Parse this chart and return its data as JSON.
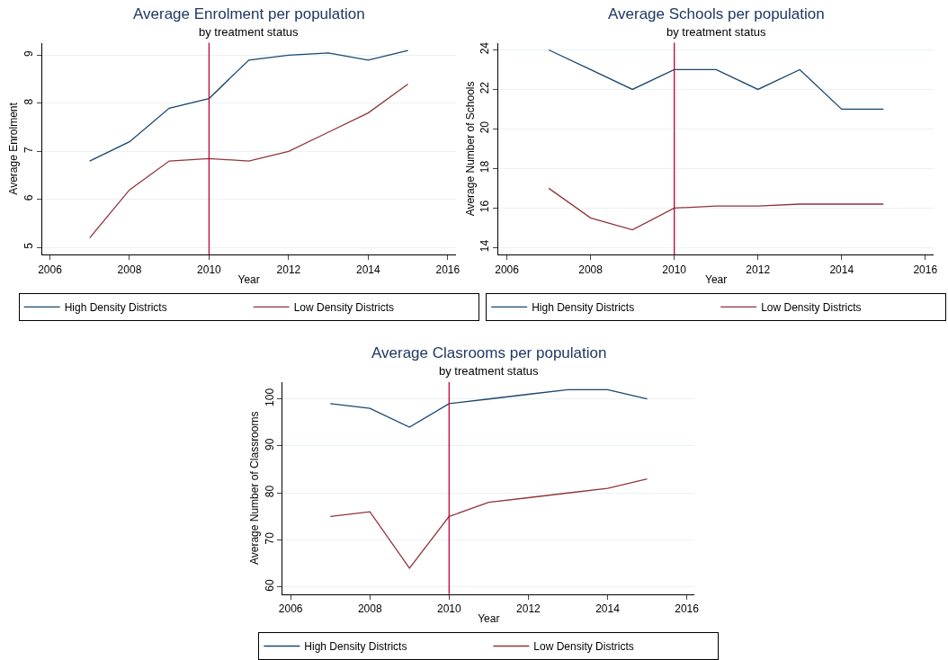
{
  "chart_data": [
    {
      "type": "line",
      "title": "Average Enrolment per population",
      "subtitle": "by treatment status",
      "xlabel": "Year",
      "ylabel": "Average Enrolment",
      "x": [
        2007,
        2008,
        2009,
        2010,
        2011,
        2012,
        2013,
        2014,
        2015
      ],
      "series": [
        {
          "name": "High Density Districts",
          "color": "#1a476f",
          "values": [
            6.8,
            7.2,
            7.9,
            8.1,
            8.9,
            9.0,
            9.05,
            8.9,
            9.1
          ]
        },
        {
          "name": "Low Density Districts",
          "color": "#90353b",
          "values": [
            5.2,
            6.2,
            6.8,
            6.85,
            6.8,
            7.0,
            7.4,
            7.8,
            8.4
          ]
        }
      ],
      "xlim": [
        2005.8,
        2016.2
      ],
      "xticks": [
        2006,
        2008,
        2010,
        2012,
        2014,
        2016
      ],
      "ylim": [
        4.85,
        9.26
      ],
      "yticks": [
        5,
        6,
        7,
        8,
        9
      ],
      "grid": "y",
      "legend": "bottom",
      "marker": "none",
      "line_style": "solid",
      "ref_lines": [
        {
          "axis": "x",
          "value": 2010,
          "color": "#c10534"
        }
      ]
    },
    {
      "type": "line",
      "title": "Average Schools per population",
      "subtitle": "by treatment status",
      "xlabel": "Year",
      "ylabel": "Average Number of Schools",
      "x": [
        2007,
        2008,
        2009,
        2010,
        2011,
        2012,
        2013,
        2014,
        2015
      ],
      "series": [
        {
          "name": "High Density Districts",
          "color": "#1a476f",
          "values": [
            24,
            23,
            22,
            23,
            23,
            22,
            23,
            21,
            21
          ]
        },
        {
          "name": "Low Density Districts",
          "color": "#90353b",
          "values": [
            17,
            15.5,
            14.9,
            16,
            16.1,
            16.1,
            16.2,
            16.2,
            16.2
          ]
        }
      ],
      "xlim": [
        2005.8,
        2016.2
      ],
      "xticks": [
        2006,
        2008,
        2010,
        2012,
        2014,
        2016
      ],
      "ylim": [
        13.64,
        24.36
      ],
      "yticks": [
        14,
        16,
        18,
        20,
        22,
        24
      ],
      "grid": "y",
      "legend": "bottom",
      "marker": "none",
      "line_style": "solid",
      "ref_lines": [
        {
          "axis": "x",
          "value": 2010,
          "color": "#c10534"
        }
      ]
    },
    {
      "type": "line",
      "title": "Average Clasrooms per population",
      "subtitle": "by treatment status",
      "xlabel": "Year",
      "ylabel": "Average Number of Classrooms",
      "x": [
        2007,
        2008,
        2009,
        2010,
        2011,
        2012,
        2013,
        2014,
        2015
      ],
      "series": [
        {
          "name": "High Density Districts",
          "color": "#1a476f",
          "values": [
            99,
            98,
            94,
            99,
            100,
            101,
            102,
            102,
            100
          ]
        },
        {
          "name": "Low Density Districts",
          "color": "#90353b",
          "values": [
            75,
            76,
            64,
            75,
            78,
            79,
            80,
            81,
            83
          ]
        }
      ],
      "xlim": [
        2005.8,
        2016.2
      ],
      "xticks": [
        2006,
        2008,
        2010,
        2012,
        2014,
        2016
      ],
      "ylim": [
        58.5,
        103.6
      ],
      "yticks": [
        60,
        70,
        80,
        90,
        100
      ],
      "grid": "y",
      "legend": "bottom",
      "marker": "none",
      "line_style": "solid",
      "ref_lines": [
        {
          "axis": "x",
          "value": 2010,
          "color": "#c10534"
        }
      ]
    }
  ]
}
